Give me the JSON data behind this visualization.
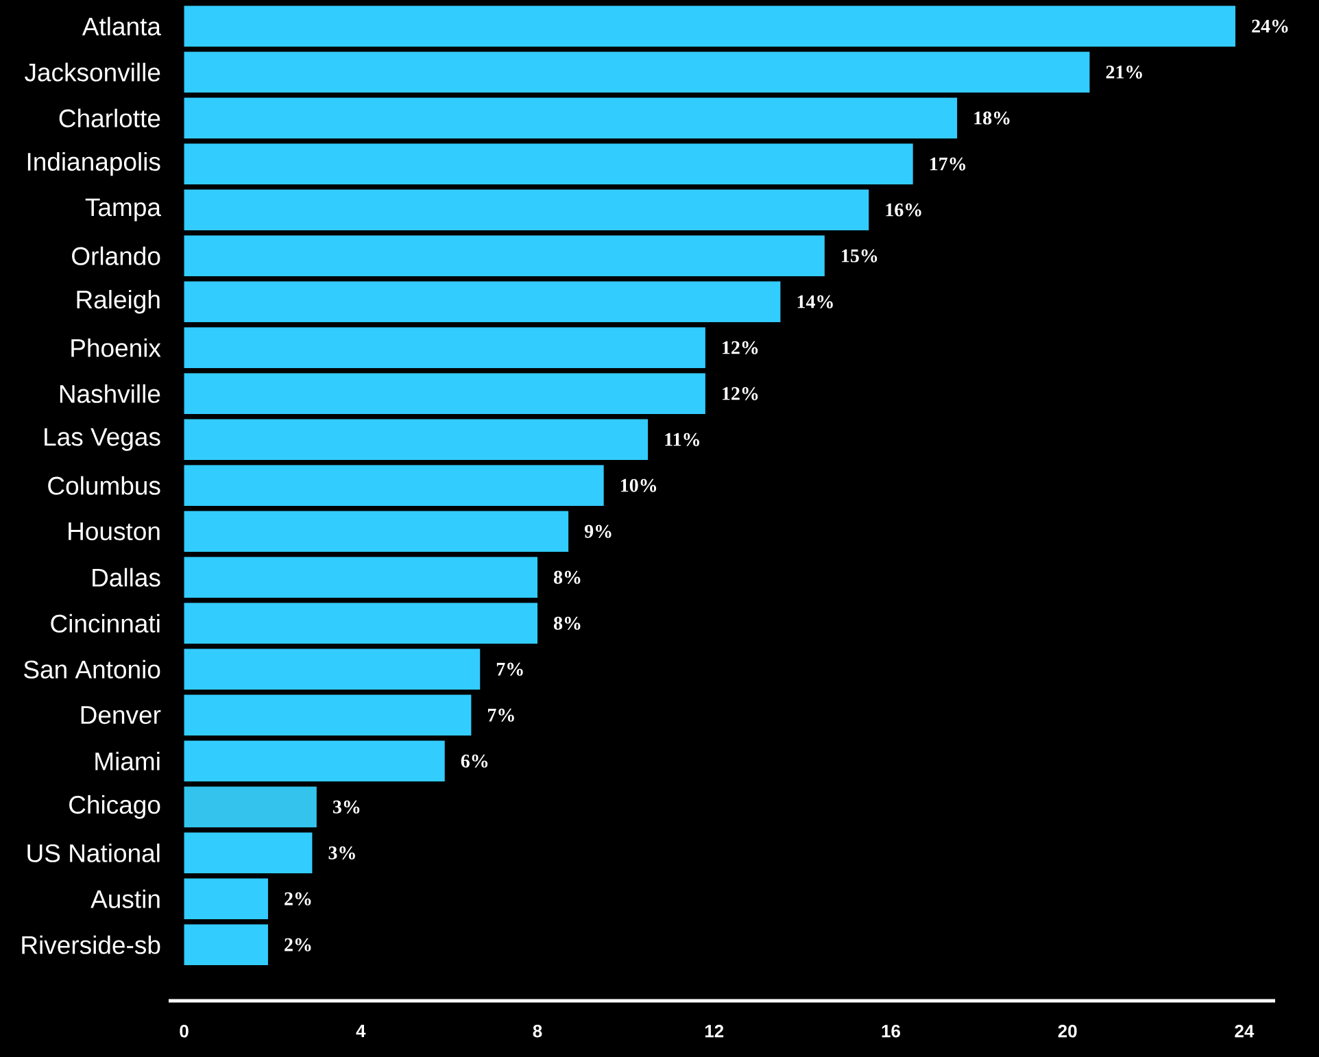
{
  "chart_data": {
    "type": "bar",
    "orientation": "horizontal",
    "categories": [
      "Atlanta",
      "Jacksonville",
      "Charlotte",
      "Indianapolis",
      "Tampa",
      "Orlando",
      "Raleigh",
      "Phoenix",
      "Nashville",
      "Las Vegas",
      "Columbus",
      "Houston",
      "Dallas",
      "Cincinnati",
      "San Antonio",
      "Denver",
      "Miami",
      "Chicago",
      "US National",
      "Austin",
      "Riverside-sb"
    ],
    "values": [
      23.8,
      20.5,
      17.5,
      16.5,
      15.5,
      14.5,
      13.5,
      11.8,
      11.8,
      10.5,
      9.5,
      8.7,
      8.0,
      8.0,
      6.7,
      6.5,
      5.9,
      3.0,
      2.9,
      1.9,
      1.9
    ],
    "colors": [
      "#33ccff",
      "#33ccff",
      "#33ccff",
      "#33ccff",
      "#33ccff",
      "#33ccff",
      "#33ccff",
      "#33ccff",
      "#33ccff",
      "#33ccff",
      "#33ccff",
      "#33ccff",
      "#33ccff",
      "#33ccff",
      "#33ccff",
      "#33ccff",
      "#33ccff",
      "#33c3ec",
      "#33ccff",
      "#33ccff",
      "#33ccff"
    ],
    "value_labels": [
      "24%",
      "21%",
      "18%",
      "17%",
      "16%",
      "15%",
      "14%",
      "12%",
      "12%",
      "11%",
      "10%",
      "9%",
      "8%",
      "8%",
      "7%",
      "7%",
      "6%",
      "3%",
      "3%",
      "2%",
      "2%"
    ],
    "xlim": [
      -0.35,
      24.7
    ],
    "xticks": [
      0,
      4,
      8,
      12,
      16,
      20,
      24
    ]
  }
}
